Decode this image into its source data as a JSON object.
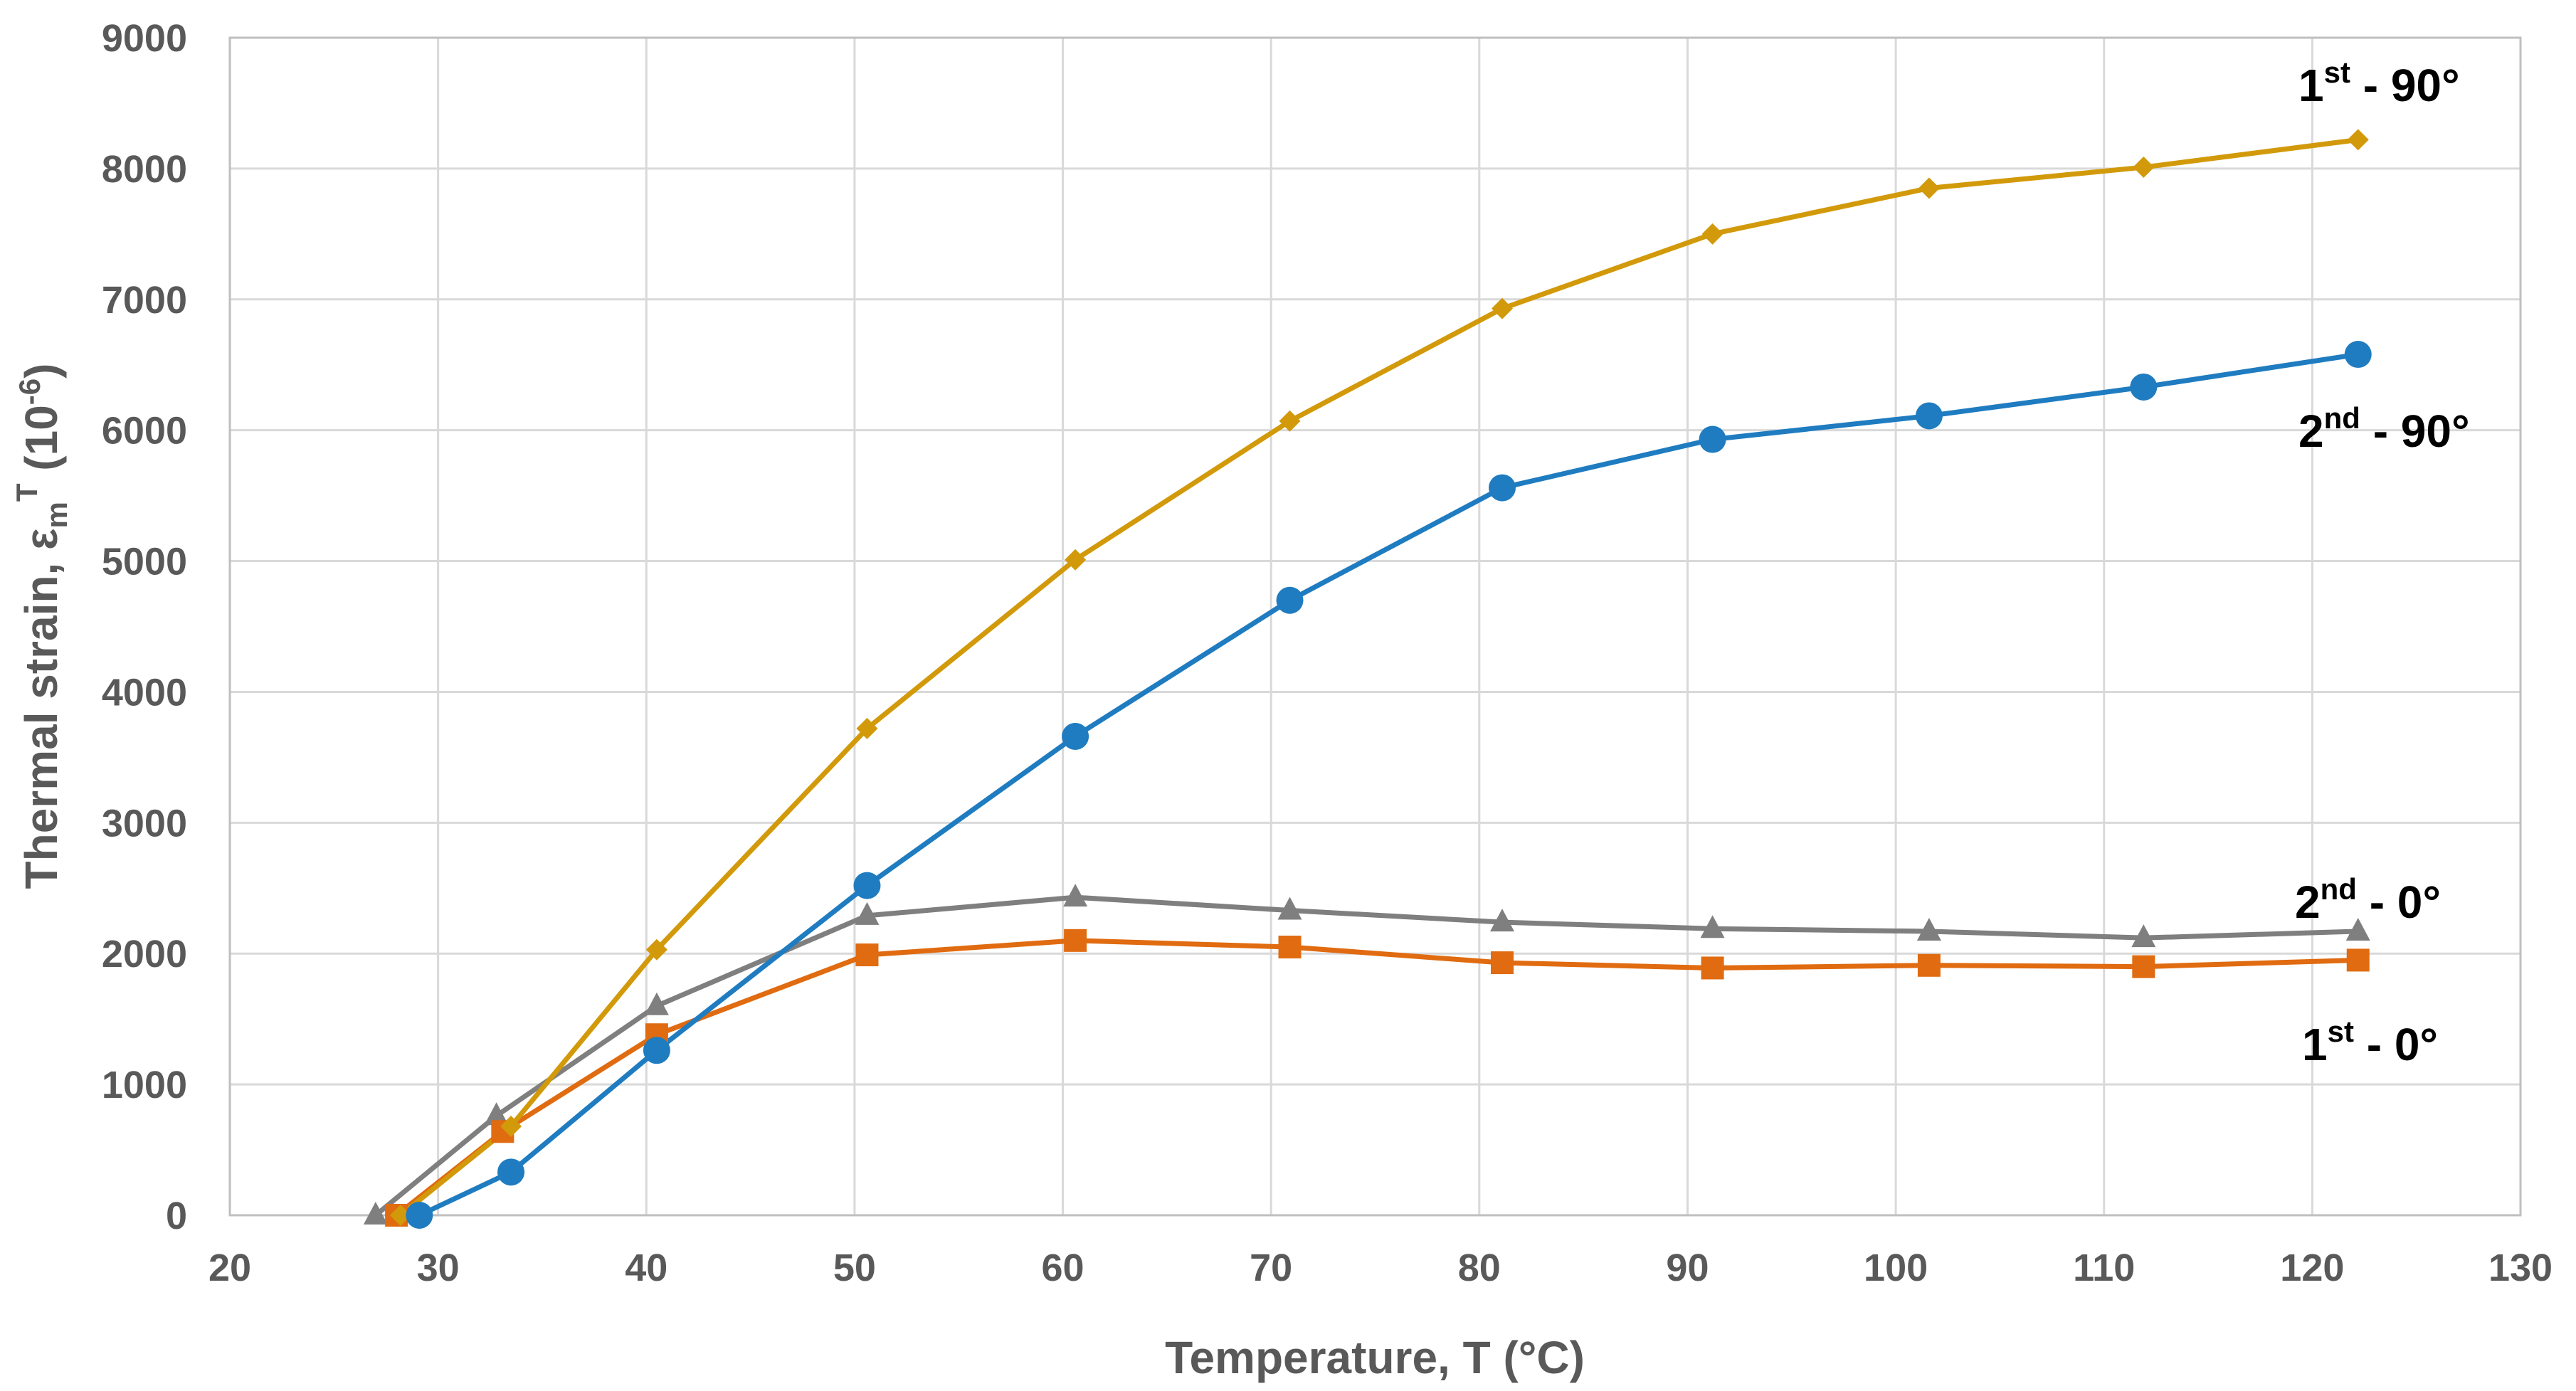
{
  "chart_data": {
    "type": "line",
    "title": "",
    "xlabel": "Temperature, T (°C)",
    "ylabel": "Thermal strain, εm",
    "ylabel_sub": "m",
    "ylabel_base": "Thermal strain, ε",
    "ylabel_sup": "T",
    "ylabel_unit_base": " (10",
    "ylabel_unit_sup": "-6",
    "ylabel_unit_close": ")",
    "xlim": [
      20,
      130
    ],
    "ylim": [
      0,
      9000
    ],
    "xticks": [
      "20",
      "30",
      "40",
      "50",
      "60",
      "70",
      "80",
      "90",
      "100",
      "110",
      "120",
      "130"
    ],
    "yticks": [
      "0",
      "1000",
      "2000",
      "3000",
      "4000",
      "5000",
      "6000",
      "7000",
      "8000",
      "9000"
    ],
    "grid": true,
    "legend": "inline labels at right end of each series",
    "series": [
      {
        "name": "1st - 90°",
        "label_base": "1",
        "label_sup": "st",
        "label_rest": " - 90°",
        "color": "#d29a0a",
        "marker": "diamond",
        "x": [
          28.2,
          33.5,
          40.5,
          50.6,
          60.6,
          70.9,
          81.1,
          91.2,
          101.6,
          111.9,
          122.2
        ],
        "y": [
          0,
          680,
          2030,
          3720,
          5010,
          6070,
          6930,
          7500,
          7850,
          8010,
          8220
        ]
      },
      {
        "name": "2nd - 90°",
        "label_base": "2",
        "label_sup": "nd",
        "label_rest": " - 90°",
        "color": "#1f7cc0",
        "marker": "circle",
        "x": [
          29.1,
          33.5,
          40.5,
          50.6,
          60.6,
          70.9,
          81.1,
          91.2,
          101.6,
          111.9,
          122.2
        ],
        "y": [
          0,
          330,
          1260,
          2520,
          3660,
          4700,
          5560,
          5930,
          6110,
          6330,
          6580
        ]
      },
      {
        "name": "2nd - 0°",
        "label_base": "2",
        "label_sup": "nd",
        "label_rest": " - 0°",
        "color": "#7f7f7f",
        "marker": "triangle",
        "x": [
          27.0,
          32.8,
          40.5,
          50.6,
          60.6,
          70.9,
          81.1,
          91.2,
          101.6,
          111.9,
          122.2
        ],
        "y": [
          0,
          760,
          1600,
          2290,
          2430,
          2330,
          2240,
          2190,
          2170,
          2120,
          2170
        ]
      },
      {
        "name": "1st - 0°",
        "label_base": "1",
        "label_sup": "st",
        "label_rest": " - 0°",
        "color": "#e06b10",
        "marker": "square",
        "x": [
          28.0,
          33.1,
          40.5,
          50.6,
          60.6,
          70.9,
          81.1,
          91.2,
          101.6,
          111.9,
          122.2
        ],
        "y": [
          0,
          640,
          1380,
          1990,
          2100,
          2050,
          1930,
          1890,
          1910,
          1900,
          1950
        ]
      }
    ]
  }
}
